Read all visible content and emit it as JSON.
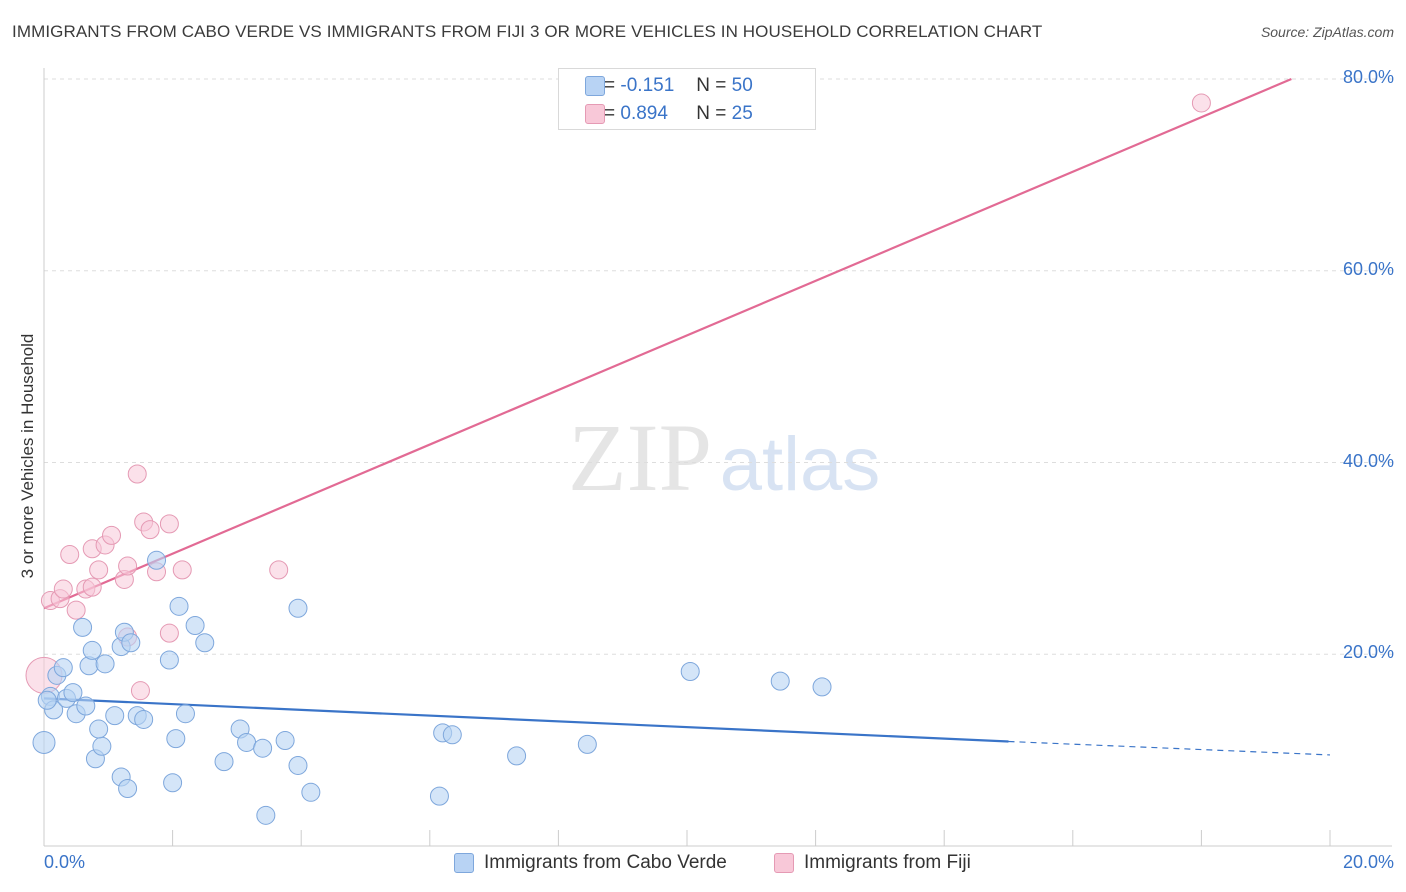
{
  "title": "IMMIGRANTS FROM CABO VERDE VS IMMIGRANTS FROM FIJI 3 OR MORE VEHICLES IN HOUSEHOLD CORRELATION CHART",
  "source": "Source: ZipAtlas.com",
  "watermark": {
    "zip": "ZIP",
    "atlas": "atlas"
  },
  "colors": {
    "blue": "#3a74c8",
    "blue_fill": "#b8d3f4",
    "pink": "#e26a94",
    "pink_fill": "#f8c8d8",
    "grid": "#dddddd"
  },
  "legend": {
    "rows": [
      {
        "r_label": "R =",
        "r_value": "-0.151",
        "n_label": "N =",
        "n_value": "50"
      },
      {
        "r_label": "R =",
        "r_value": "0.894",
        "n_label": "N =",
        "n_value": "25"
      }
    ]
  },
  "bottom_legend": {
    "blue_label": "Immigrants from Cabo Verde",
    "pink_label": "Immigrants from Fiji"
  },
  "chart_data": {
    "type": "scatter",
    "title": "IMMIGRANTS FROM CABO VERDE VS IMMIGRANTS FROM FIJI 3 OR MORE VEHICLES IN HOUSEHOLD CORRELATION CHART",
    "xlabel": "",
    "ylabel": "3 or more Vehicles in Household",
    "xlim": [
      0,
      20
    ],
    "ylim": [
      0,
      80
    ],
    "x_tick_labels": [
      "0.0%",
      "20.0%"
    ],
    "y_ticks": [
      20,
      40,
      60,
      80
    ],
    "y_tick_labels": [
      "20.0%",
      "40.0%",
      "60.0%",
      "80.0%"
    ],
    "grid": true,
    "legend_position": "top-center",
    "series": [
      {
        "name": "Immigrants from Cabo Verde",
        "color": "#3a74c8",
        "points": [
          [
            0.0,
            10.8
          ],
          [
            0.1,
            15.6
          ],
          [
            0.15,
            14.2
          ],
          [
            0.2,
            17.8
          ],
          [
            0.3,
            18.6
          ],
          [
            0.35,
            15.4
          ],
          [
            0.45,
            16.0
          ],
          [
            0.5,
            13.8
          ],
          [
            0.6,
            22.8
          ],
          [
            0.65,
            14.6
          ],
          [
            0.7,
            18.8
          ],
          [
            0.75,
            20.4
          ],
          [
            0.8,
            9.1
          ],
          [
            0.9,
            10.4
          ],
          [
            0.85,
            12.2
          ],
          [
            0.95,
            19.0
          ],
          [
            1.1,
            13.6
          ],
          [
            1.2,
            20.8
          ],
          [
            1.25,
            22.3
          ],
          [
            1.2,
            7.2
          ],
          [
            1.3,
            6.0
          ],
          [
            1.35,
            21.2
          ],
          [
            1.45,
            13.6
          ],
          [
            1.55,
            13.2
          ],
          [
            1.75,
            29.8
          ],
          [
            1.95,
            19.4
          ],
          [
            2.0,
            6.6
          ],
          [
            2.05,
            11.2
          ],
          [
            2.1,
            25.0
          ],
          [
            2.2,
            13.8
          ],
          [
            2.35,
            23.0
          ],
          [
            2.5,
            21.2
          ],
          [
            2.8,
            8.8
          ],
          [
            3.05,
            12.2
          ],
          [
            3.15,
            10.8
          ],
          [
            3.4,
            10.2
          ],
          [
            3.45,
            3.2
          ],
          [
            3.75,
            11.0
          ],
          [
            3.95,
            8.4
          ],
          [
            3.95,
            24.8
          ],
          [
            4.15,
            5.6
          ],
          [
            6.15,
            5.2
          ],
          [
            6.2,
            11.8
          ],
          [
            6.35,
            11.6
          ],
          [
            7.35,
            9.4
          ],
          [
            8.45,
            10.6
          ],
          [
            10.05,
            18.2
          ],
          [
            11.45,
            17.2
          ],
          [
            12.1,
            16.6
          ],
          [
            0.05,
            15.2
          ]
        ],
        "trend": {
          "x0": 0.0,
          "y0": 15.4,
          "x1": 15.0,
          "y1": 10.9,
          "dashed_to_x": 20.0,
          "dashed_to_y": 9.5
        }
      },
      {
        "name": "Immigrants from Fiji",
        "color": "#e26a94",
        "points": [
          [
            0.0,
            17.8
          ],
          [
            0.1,
            25.6
          ],
          [
            0.25,
            25.8
          ],
          [
            0.3,
            26.8
          ],
          [
            0.4,
            30.4
          ],
          [
            0.5,
            24.6
          ],
          [
            0.65,
            26.8
          ],
          [
            0.75,
            27.0
          ],
          [
            0.75,
            31.0
          ],
          [
            0.85,
            28.8
          ],
          [
            0.95,
            31.4
          ],
          [
            1.05,
            32.4
          ],
          [
            1.25,
            27.8
          ],
          [
            1.3,
            29.2
          ],
          [
            1.3,
            21.8
          ],
          [
            1.45,
            38.8
          ],
          [
            1.5,
            16.2
          ],
          [
            1.55,
            33.8
          ],
          [
            1.65,
            33.0
          ],
          [
            1.75,
            28.6
          ],
          [
            1.95,
            22.2
          ],
          [
            1.95,
            33.6
          ],
          [
            2.15,
            28.8
          ],
          [
            3.65,
            28.8
          ],
          [
            18.0,
            77.5
          ]
        ],
        "trend": {
          "x0": 0.0,
          "y0": 24.8,
          "x1": 19.4,
          "y1": 80.0
        }
      }
    ]
  }
}
